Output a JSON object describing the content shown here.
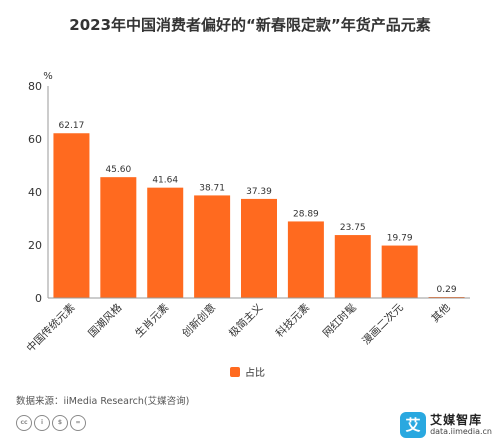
{
  "chart_data": {
    "type": "bar",
    "title": "2023年中国消费者偏好的“新春限定款”年货产品元素",
    "unit_label": "%",
    "categories": [
      "中国传统元素",
      "国潮风格",
      "生肖元素",
      "创新创意",
      "极简主义",
      "科技元素",
      "网红时髦",
      "漫画二次元",
      "其他"
    ],
    "series": [
      {
        "name": "占比",
        "values": [
          62.17,
          45.6,
          41.64,
          38.71,
          37.39,
          28.89,
          23.75,
          19.79,
          0.29
        ],
        "data_labels": [
          "62.17",
          "45.60",
          "41.64",
          "38.71",
          "37.39",
          "28.89",
          "23.75",
          "19.79",
          "0.29"
        ]
      }
    ],
    "ylim": [
      0,
      80
    ],
    "yticks": [
      0,
      20,
      40,
      60,
      80
    ],
    "grid": false,
    "legend": "bottom-center",
    "colors": {
      "bar": "#ff6a1f",
      "axis": "#999999",
      "text": "#333333"
    }
  },
  "source": "数据来源：iiMedia Research(艾媒咨询)",
  "license_icons": [
    "cc-icon",
    "by-icon",
    "nc-icon",
    "nd-icon"
  ],
  "brand": {
    "name": "艾媒智库",
    "url": "data.iimedia.cn",
    "logo_glyph": "艾"
  }
}
